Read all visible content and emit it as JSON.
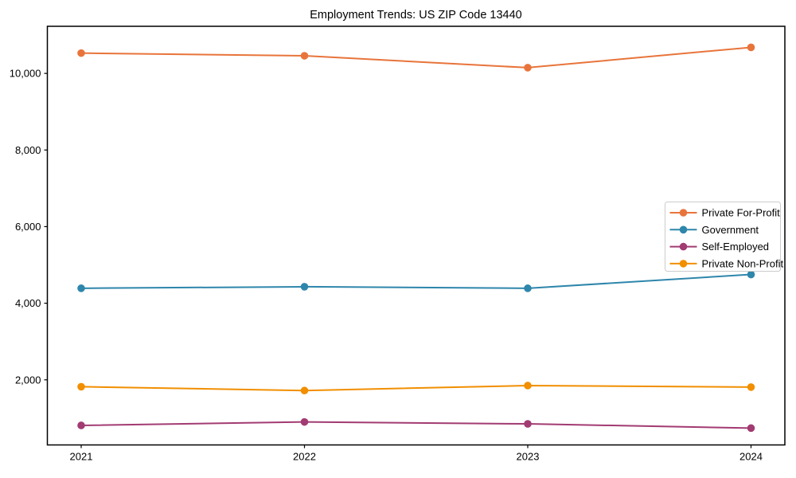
{
  "chart_data": {
    "type": "line",
    "title": "Employment Trends: US ZIP Code 13440",
    "categories": [
      "2021",
      "2022",
      "2023",
      "2024"
    ],
    "series": [
      {
        "name": "Private For-Profit",
        "color": "#E8743B",
        "values": [
          10530,
          10460,
          10150,
          10680
        ]
      },
      {
        "name": "Government",
        "color": "#2E86AB",
        "values": [
          4390,
          4430,
          4390,
          4750
        ]
      },
      {
        "name": "Self-Employed",
        "color": "#A23B72",
        "values": [
          810,
          900,
          850,
          740
        ]
      },
      {
        "name": "Private Non-Profit",
        "color": "#F18F01",
        "values": [
          1820,
          1720,
          1850,
          1810
        ]
      }
    ],
    "xlabel": "",
    "ylabel": "",
    "ylim": [
      300,
      11230
    ],
    "yticks": [
      2000,
      4000,
      6000,
      8000,
      10000
    ],
    "ytick_labels": [
      "2,000",
      "4,000",
      "6,000",
      "8,000",
      "10,000"
    ],
    "grid": false,
    "legend_position": "center-right",
    "marker": "circle",
    "axis_color": "#000000",
    "legend_border_color": "#cccccc",
    "background_color": "#ffffff"
  }
}
